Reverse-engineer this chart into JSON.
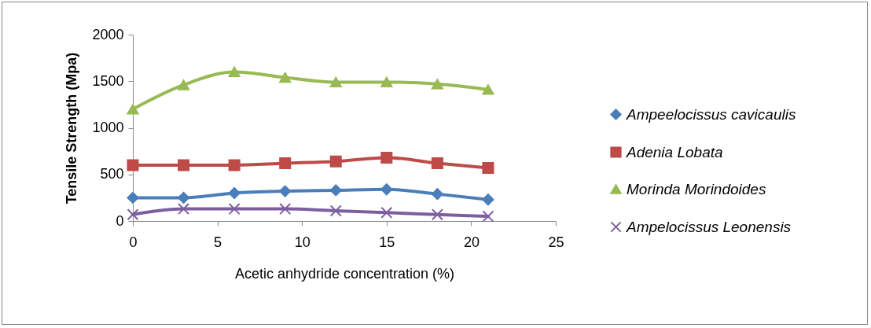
{
  "chart_data": {
    "type": "line",
    "xlabel": "Acetic anhydride concentration (%)",
    "ylabel": "Tensile Strength (Mpa)",
    "x": [
      0,
      3,
      6,
      9,
      12,
      15,
      18,
      21
    ],
    "series": [
      {
        "name": "Ampeelocissus cavicaulis",
        "color": "#4a7ebb",
        "marker": "diamond",
        "values": [
          250,
          250,
          300,
          320,
          330,
          340,
          290,
          230
        ]
      },
      {
        "name": "Adenia Lobata",
        "color": "#be4b48",
        "marker": "square",
        "values": [
          600,
          600,
          600,
          620,
          640,
          680,
          620,
          570
        ]
      },
      {
        "name": "Morinda Morindoides",
        "color": "#98b954",
        "marker": "triangle",
        "values": [
          1200,
          1460,
          1600,
          1540,
          1490,
          1490,
          1470,
          1410
        ]
      },
      {
        "name": "Ampelocissus Leonensis",
        "color": "#7d5fa0",
        "marker": "cross",
        "values": [
          70,
          130,
          130,
          130,
          110,
          90,
          70,
          50
        ]
      }
    ],
    "xlim": [
      0,
      25
    ],
    "xticks": [
      0,
      5,
      10,
      15,
      20,
      25
    ],
    "ylim": [
      0,
      2000
    ],
    "yticks": [
      0,
      500,
      {
        "value": 1000,
        "label": "1000"
      },
      {
        "value": 1500,
        "label": "1500"
      },
      {
        "value": 2000,
        "label": "2000"
      }
    ],
    "grid": false,
    "legend": "right",
    "line_style": "solid"
  }
}
